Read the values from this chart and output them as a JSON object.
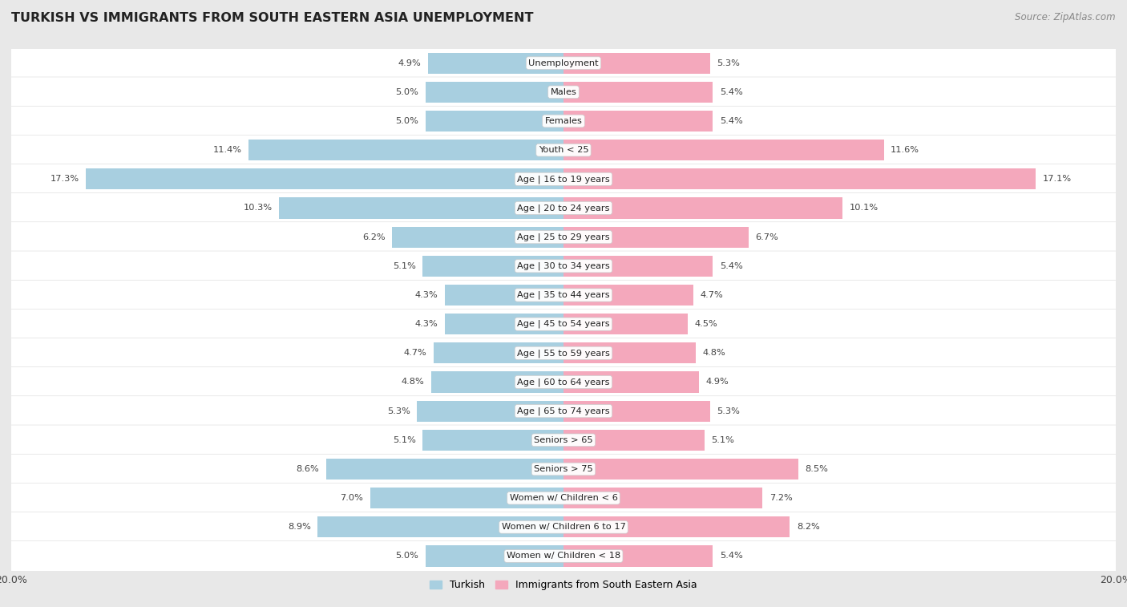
{
  "title": "TURKISH VS IMMIGRANTS FROM SOUTH EASTERN ASIA UNEMPLOYMENT",
  "source": "Source: ZipAtlas.com",
  "categories": [
    "Unemployment",
    "Males",
    "Females",
    "Youth < 25",
    "Age | 16 to 19 years",
    "Age | 20 to 24 years",
    "Age | 25 to 29 years",
    "Age | 30 to 34 years",
    "Age | 35 to 44 years",
    "Age | 45 to 54 years",
    "Age | 55 to 59 years",
    "Age | 60 to 64 years",
    "Age | 65 to 74 years",
    "Seniors > 65",
    "Seniors > 75",
    "Women w/ Children < 6",
    "Women w/ Children 6 to 17",
    "Women w/ Children < 18"
  ],
  "turkish_values": [
    4.9,
    5.0,
    5.0,
    11.4,
    17.3,
    10.3,
    6.2,
    5.1,
    4.3,
    4.3,
    4.7,
    4.8,
    5.3,
    5.1,
    8.6,
    7.0,
    8.9,
    5.0
  ],
  "immigrant_values": [
    5.3,
    5.4,
    5.4,
    11.6,
    17.1,
    10.1,
    6.7,
    5.4,
    4.7,
    4.5,
    4.8,
    4.9,
    5.3,
    5.1,
    8.5,
    7.2,
    8.2,
    5.4
  ],
  "turkish_color": "#a8cfe0",
  "immigrant_color": "#f4a8bc",
  "row_color_odd": "#e8e8e8",
  "row_color_even": "#f5f5f5",
  "background_color": "#e8e8e8",
  "xlim": 20.0,
  "bar_height": 0.72,
  "legend_turkish": "Turkish",
  "legend_immigrant": "Immigrants from South Eastern Asia"
}
